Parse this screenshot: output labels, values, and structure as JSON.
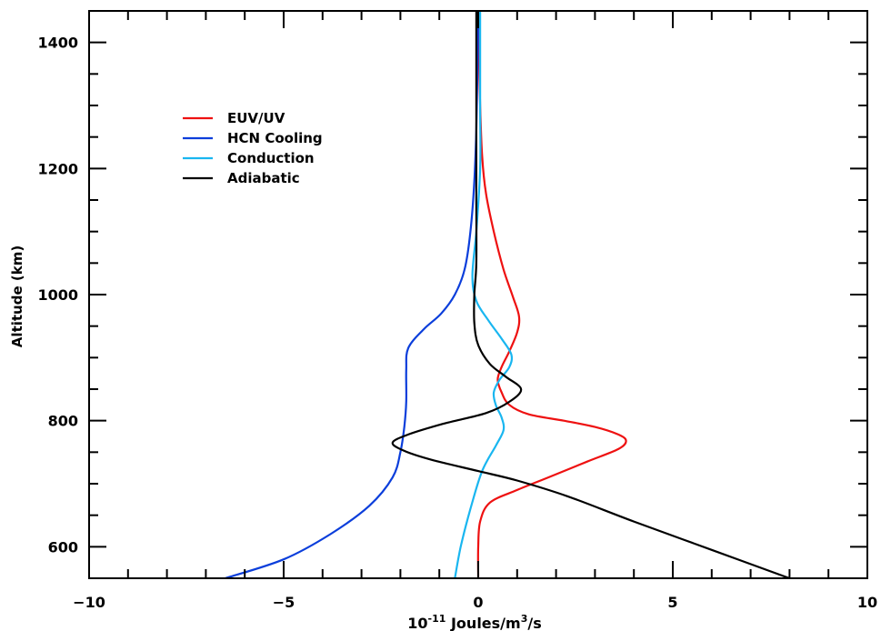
{
  "chart_data": {
    "type": "line",
    "title": "",
    "xlabel_prefix": "10",
    "xlabel_exp": "-11",
    "xlabel_units": " Joules/m",
    "xlabel_unit_exp": "3",
    "xlabel_suffix": "/s",
    "ylabel": "Altitude (km)",
    "xlim": [
      -10,
      10
    ],
    "ylim": [
      550,
      1450
    ],
    "xticks": [
      -10,
      -5,
      0,
      5,
      10
    ],
    "xtick_labels": [
      "−10",
      "−5",
      "0",
      "5",
      "10"
    ],
    "yticks": [
      600,
      800,
      1000,
      1200,
      1400
    ],
    "ytick_labels": [
      "600",
      "800",
      "1000",
      "1200",
      "1400"
    ],
    "grid": false,
    "legend_position": "upper-left",
    "series": [
      {
        "name": "EUV/UV",
        "color": "#ee1111",
        "points": [
          [
            0,
            550
          ],
          [
            0,
            600
          ],
          [
            0.05,
            640
          ],
          [
            0.3,
            670
          ],
          [
            1.0,
            690
          ],
          [
            1.8,
            710
          ],
          [
            2.8,
            735
          ],
          [
            3.6,
            755
          ],
          [
            3.8,
            768
          ],
          [
            3.6,
            778
          ],
          [
            3.0,
            790
          ],
          [
            2.2,
            800
          ],
          [
            1.3,
            810
          ],
          [
            0.8,
            825
          ],
          [
            0.6,
            845
          ],
          [
            0.5,
            865
          ],
          [
            0.6,
            885
          ],
          [
            0.8,
            910
          ],
          [
            1.0,
            940
          ],
          [
            1.05,
            965
          ],
          [
            0.9,
            995
          ],
          [
            0.65,
            1040
          ],
          [
            0.4,
            1100
          ],
          [
            0.2,
            1160
          ],
          [
            0.1,
            1220
          ],
          [
            0.05,
            1300
          ],
          [
            0.02,
            1380
          ],
          [
            0,
            1450
          ]
        ]
      },
      {
        "name": "HCN Cooling",
        "color": "#0b3edb",
        "points": [
          [
            -6.5,
            550
          ],
          [
            -5.0,
            580
          ],
          [
            -3.8,
            620
          ],
          [
            -2.8,
            665
          ],
          [
            -2.2,
            710
          ],
          [
            -2.0,
            750
          ],
          [
            -1.9,
            790
          ],
          [
            -1.85,
            830
          ],
          [
            -1.85,
            880
          ],
          [
            -1.8,
            915
          ],
          [
            -1.4,
            945
          ],
          [
            -0.95,
            970
          ],
          [
            -0.6,
            1000
          ],
          [
            -0.35,
            1040
          ],
          [
            -0.2,
            1100
          ],
          [
            -0.1,
            1180
          ],
          [
            -0.05,
            1260
          ],
          [
            -0.02,
            1350
          ],
          [
            0,
            1450
          ]
        ]
      },
      {
        "name": "Conduction",
        "color": "#19b6f0",
        "points": [
          [
            -0.6,
            550
          ],
          [
            -0.45,
            600
          ],
          [
            -0.2,
            660
          ],
          [
            0.1,
            720
          ],
          [
            0.45,
            760
          ],
          [
            0.65,
            785
          ],
          [
            0.6,
            805
          ],
          [
            0.45,
            825
          ],
          [
            0.4,
            845
          ],
          [
            0.55,
            865
          ],
          [
            0.8,
            885
          ],
          [
            0.85,
            905
          ],
          [
            0.6,
            930
          ],
          [
            0.25,
            960
          ],
          [
            -0.05,
            990
          ],
          [
            -0.15,
            1030
          ],
          [
            -0.05,
            1100
          ],
          [
            0.05,
            1200
          ],
          [
            0.05,
            1300
          ],
          [
            0.05,
            1450
          ]
        ]
      },
      {
        "name": "Adiabatic",
        "color": "#000000",
        "points": [
          [
            8.0,
            550
          ],
          [
            6.0,
            595
          ],
          [
            4.0,
            640
          ],
          [
            2.3,
            680
          ],
          [
            1.0,
            705
          ],
          [
            0,
            720
          ],
          [
            -1.2,
            738
          ],
          [
            -1.9,
            752
          ],
          [
            -2.2,
            765
          ],
          [
            -1.8,
            778
          ],
          [
            -0.9,
            795
          ],
          [
            0.2,
            812
          ],
          [
            0.8,
            830
          ],
          [
            1.1,
            850
          ],
          [
            0.7,
            870
          ],
          [
            0.3,
            890
          ],
          [
            0,
            920
          ],
          [
            -0.1,
            955
          ],
          [
            -0.1,
            1000
          ],
          [
            -0.05,
            1050
          ],
          [
            -0.05,
            1150
          ],
          [
            -0.05,
            1300
          ],
          [
            -0.05,
            1450
          ]
        ]
      }
    ]
  }
}
